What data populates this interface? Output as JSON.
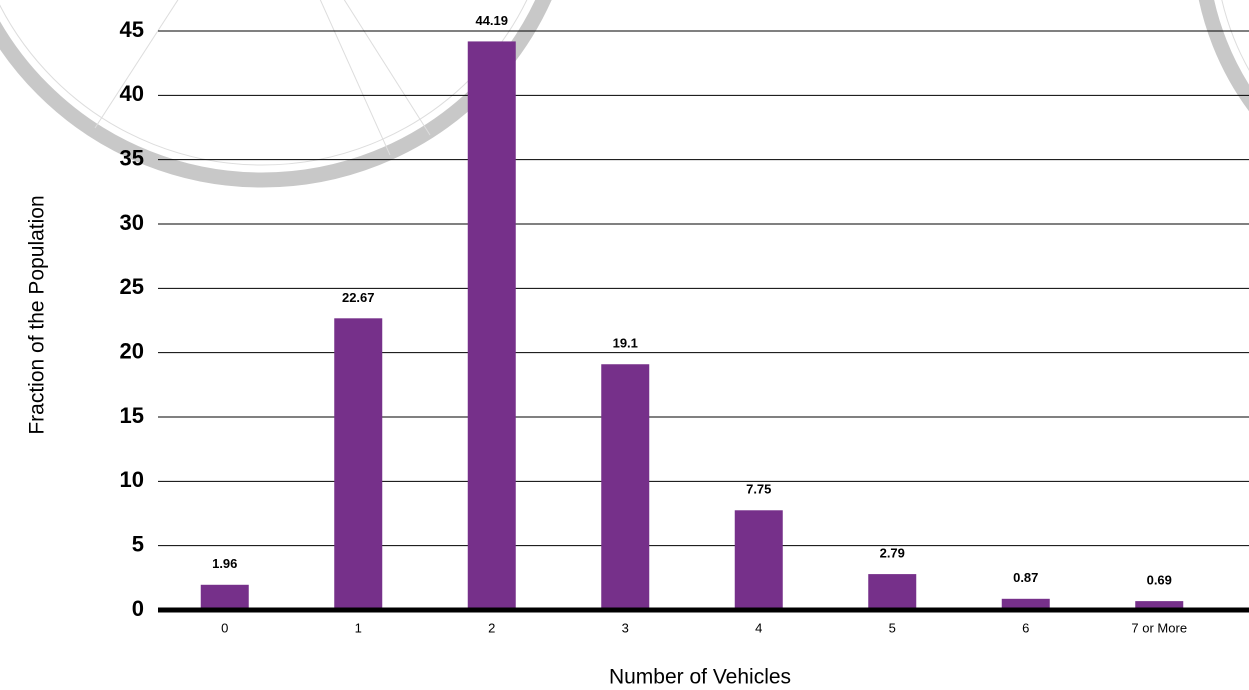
{
  "chart_data": {
    "type": "bar",
    "x_label": "Number of Vehicles",
    "y_label": "Fraction of the Population",
    "categories": [
      "0",
      "1",
      "2",
      "3",
      "4",
      "5",
      "6",
      "7 or More"
    ],
    "values": [
      1.96,
      22.67,
      44.19,
      19.1,
      7.75,
      2.79,
      0.87,
      0.69
    ],
    "color": "#76308a",
    "ylim": [
      0,
      45
    ],
    "yticks": [
      0,
      5,
      10,
      15,
      20,
      25,
      30,
      35,
      40,
      45
    ],
    "grid": true
  }
}
